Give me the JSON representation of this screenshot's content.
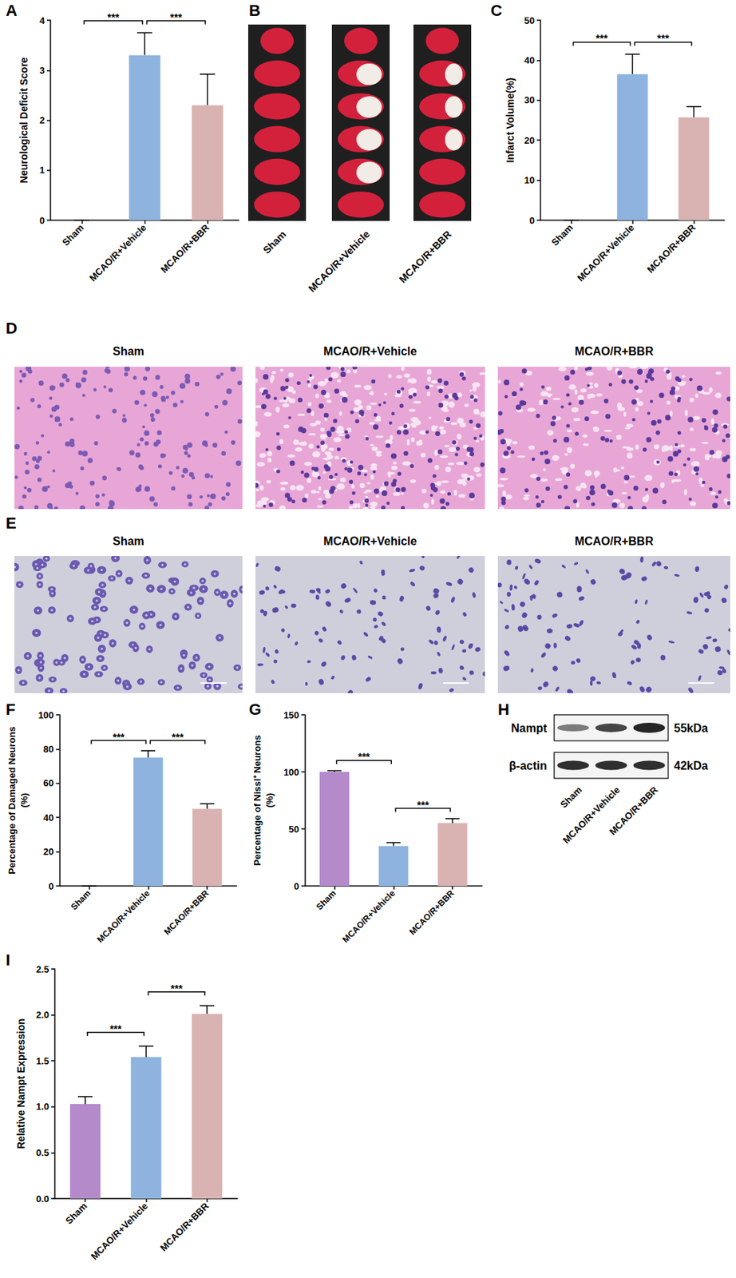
{
  "chart_data": [
    {
      "panel_label": "A",
      "type": "bar",
      "y_label": "Neurological Deficit Score",
      "categories": [
        "Sham",
        "MCAO/R+Vehicle",
        "MCAO/R+BBR"
      ],
      "values": [
        0,
        3.3,
        2.3
      ],
      "errors": [
        0,
        0.45,
        0.62
      ],
      "colors": [
        "#B48ACB",
        "#8DB3DE",
        "#D9B2B2"
      ],
      "ylim": [
        0,
        4
      ],
      "yticks": [
        0,
        1,
        2,
        3,
        4
      ],
      "grid": false,
      "significance": [
        {
          "from": "Sham",
          "to": "MCAO/R+Vehicle",
          "label": "***"
        },
        {
          "from": "MCAO/R+Vehicle",
          "to": "MCAO/R+BBR",
          "label": "***"
        }
      ]
    },
    {
      "panel_label": "C",
      "type": "bar",
      "y_label": "Infarct Volume(%)",
      "categories": [
        "Sham",
        "MCAO/R+Vehicle",
        "MCAO/R+BBR"
      ],
      "values": [
        0,
        36.5,
        25.7
      ],
      "errors": [
        0,
        5,
        2.7
      ],
      "colors": [
        "#B48ACB",
        "#8DB3DE",
        "#D9B2B2"
      ],
      "ylim": [
        0,
        50
      ],
      "yticks": [
        0,
        10,
        20,
        30,
        40,
        50
      ],
      "grid": false,
      "significance": [
        {
          "from": "Sham",
          "to": "MCAO/R+Vehicle",
          "label": "***"
        },
        {
          "from": "MCAO/R+Vehicle",
          "to": "MCAO/R+BBR",
          "label": "***"
        }
      ]
    },
    {
      "panel_label": "F",
      "type": "bar",
      "y_label": "Percentage of Damaged Neurons\n(%)",
      "categories": [
        "Sham",
        "MCAO/R+Vehicle",
        "MCAO/R+BBR"
      ],
      "values": [
        0,
        75,
        45
      ],
      "errors": [
        0,
        4,
        3
      ],
      "colors": [
        "#B48ACB",
        "#8DB3DE",
        "#D9B2B2"
      ],
      "ylim": [
        0,
        100
      ],
      "yticks": [
        0,
        20,
        40,
        60,
        80,
        100
      ],
      "grid": false,
      "significance": [
        {
          "from": "Sham",
          "to": "MCAO/R+Vehicle",
          "label": "***"
        },
        {
          "from": "MCAO/R+Vehicle",
          "to": "MCAO/R+BBR",
          "label": "***"
        }
      ]
    },
    {
      "panel_label": "G",
      "type": "bar",
      "y_label": "Percentage of Nissl⁺ Neurons\n(%)",
      "categories": [
        "Sham",
        "MCAO/R+Vehicle",
        "MCAO/R+BBR"
      ],
      "values": [
        100,
        35,
        55
      ],
      "errors": [
        1,
        3,
        4
      ],
      "colors": [
        "#B48ACB",
        "#8DB3DE",
        "#D9B2B2"
      ],
      "ylim": [
        0,
        150
      ],
      "yticks": [
        0,
        50,
        100,
        150
      ],
      "grid": false,
      "significance": [
        {
          "from": "Sham",
          "to": "MCAO/R+Vehicle",
          "label": "***"
        },
        {
          "from": "MCAO/R+Vehicle",
          "to": "MCAO/R+BBR",
          "label": "***"
        }
      ]
    },
    {
      "panel_label": "I",
      "type": "bar",
      "y_label": "Relative Nampt Expression",
      "categories": [
        "Sham",
        "MCAO/R+Vehicle",
        "MCAO/R+BBR"
      ],
      "values": [
        1.03,
        1.54,
        2.01
      ],
      "errors": [
        0.08,
        0.12,
        0.09
      ],
      "colors": [
        "#B48ACB",
        "#8DB3DE",
        "#D9B2B2"
      ],
      "ylim": [
        0,
        2.5
      ],
      "yticks": [
        {
          "value": 0,
          "label": "0.0"
        },
        0.5,
        {
          "value": 1,
          "label": "1.0"
        },
        1.5,
        {
          "value": 2,
          "label": "2.0"
        },
        2.5
      ],
      "grid": false,
      "significance": [
        {
          "from": "Sham",
          "to": "MCAO/R+Vehicle",
          "label": "***"
        },
        {
          "from": "MCAO/R+Vehicle",
          "to": "MCAO/R+BBR",
          "label": "***"
        }
      ]
    }
  ],
  "images": [
    {
      "panel_label": "B",
      "type": "ttc",
      "lanes": [
        "Sham",
        "MCAO/R+Vehicle",
        "MCAO/R+BBR"
      ]
    },
    {
      "panel_label": "D",
      "type": "he_stain",
      "titles": [
        "Sham",
        "MCAO/R+Vehicle",
        "MCAO/R+BBR"
      ]
    },
    {
      "panel_label": "E",
      "type": "nissl_stain",
      "titles": [
        "Sham",
        "MCAO/R+Vehicle",
        "MCAO/R+BBR"
      ]
    },
    {
      "panel_label": "H",
      "type": "western_blot",
      "rows": [
        {
          "label": "Nampt",
          "size": "55kDa"
        },
        {
          "label": "β-actin",
          "size": "42kDa"
        }
      ],
      "lanes": [
        "Sham",
        "MCAO/R+Vehicle",
        "MCAO/R+BBR"
      ]
    }
  ]
}
